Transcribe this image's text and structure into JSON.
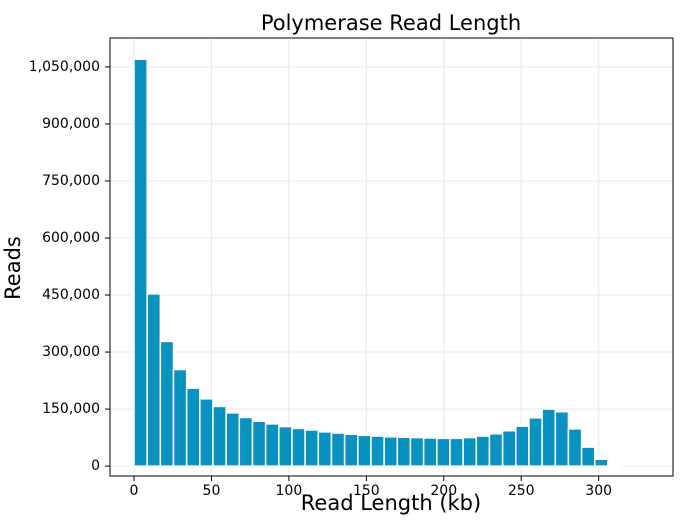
{
  "chart_data": {
    "type": "histogram",
    "title": "Polymerase Read Length",
    "xlabel": "Read Length (kb)",
    "ylabel": "Reads",
    "bins": [
      0,
      8.5,
      17,
      25.5,
      34,
      42.5,
      51,
      59.5,
      68,
      76.5,
      85,
      93.5,
      102,
      110.5,
      119,
      127.5,
      136,
      144.5,
      153,
      161.5,
      170,
      178.5,
      187,
      195.5,
      204,
      212.5,
      221,
      229.5,
      238,
      246.5,
      255,
      263.5,
      272,
      280.5,
      289,
      297.5,
      306,
      314.5
    ],
    "values": [
      1070000,
      453000,
      328000,
      254000,
      205000,
      177000,
      157000,
      140000,
      128000,
      118000,
      111000,
      104000,
      99000,
      95000,
      90000,
      87000,
      84000,
      81000,
      79000,
      77000,
      76000,
      75000,
      74000,
      73000,
      73000,
      75000,
      79000,
      85000,
      93000,
      105000,
      127000,
      150000,
      143000,
      98000,
      50000,
      18000,
      3000
    ],
    "color": "#0892c0",
    "xlim": [
      -15.5,
      348
    ],
    "ylim": [
      -26000,
      1126000
    ],
    "xticks": [
      0,
      50,
      100,
      150,
      200,
      250,
      300
    ],
    "yticks": [
      0,
      {
        "value": 150000,
        "label": "150,000"
      },
      {
        "value": 300000,
        "label": "300,000"
      },
      {
        "value": 450000,
        "label": "450,000"
      },
      {
        "value": 600000,
        "label": "600,000"
      },
      {
        "value": 750000,
        "label": "750,000"
      },
      {
        "value": 900000,
        "label": "900,000"
      },
      {
        "value": 1050000,
        "label": "1,050,000"
      }
    ],
    "grid": true
  }
}
